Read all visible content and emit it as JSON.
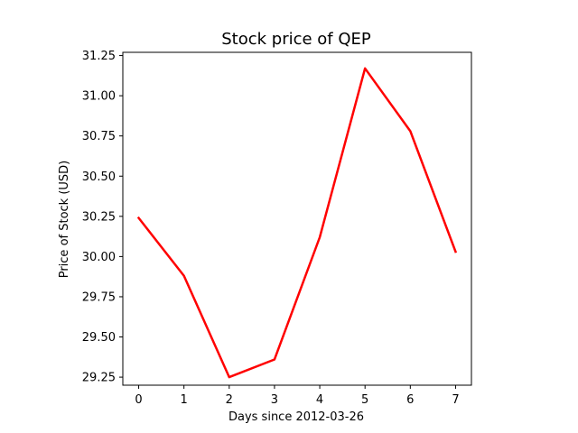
{
  "chart_data": {
    "type": "line",
    "title": "Stock price of QEP",
    "xlabel": "Days since 2012-03-26",
    "ylabel": "Price of Stock (USD)",
    "x": [
      0,
      1,
      2,
      3,
      4,
      5,
      6,
      7
    ],
    "series": [
      {
        "values": [
          30.24,
          29.88,
          29.25,
          29.36,
          30.12,
          31.17,
          30.78,
          30.03
        ],
        "color": "#ff0000"
      }
    ],
    "xlim": [
      -0.35,
      7.35
    ],
    "ylim": [
      29.2,
      31.27
    ],
    "xticks": [
      "0",
      "1",
      "2",
      "3",
      "4",
      "5",
      "6",
      "7"
    ],
    "yticks": [
      "29.25",
      "29.50",
      "29.75",
      "30.00",
      "30.25",
      "30.50",
      "30.75",
      "31.00",
      "31.25"
    ],
    "grid": false
  }
}
